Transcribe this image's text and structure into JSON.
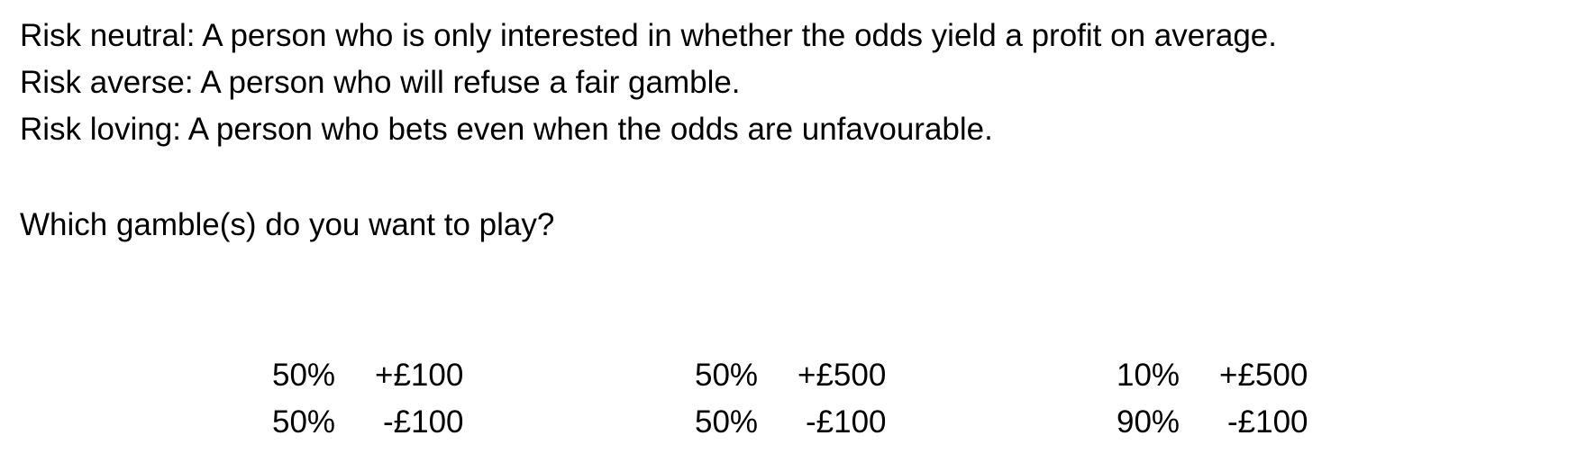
{
  "definitions": [
    "Risk neutral: A person who is only interested in whether the odds yield a profit on average.",
    "Risk averse: A person who will refuse a fair gamble.",
    "Risk loving: A person who bets even when the odds are unfavourable."
  ],
  "question": "Which gamble(s) do you want to play?",
  "gambles": [
    {
      "outcomes": [
        {
          "prob": "50%",
          "amount": "+£100"
        },
        {
          "prob": "50%",
          "amount": "-£100"
        }
      ]
    },
    {
      "outcomes": [
        {
          "prob": "50%",
          "amount": "+£500"
        },
        {
          "prob": "50%",
          "amount": "-£100"
        }
      ]
    },
    {
      "outcomes": [
        {
          "prob": "10%",
          "amount": "+£500"
        },
        {
          "prob": "90%",
          "amount": "-£100"
        }
      ]
    }
  ]
}
